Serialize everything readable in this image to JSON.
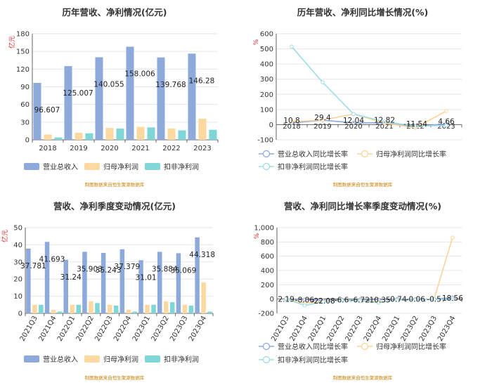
{
  "colors": {
    "revenue": "#8eaadb",
    "net_profit": "#fdd8a0",
    "deducted_profit": "#7fd6d6",
    "revenue_line": "#8eaadb",
    "net_line": "#fcd49a",
    "deducted_line": "#9fdde6",
    "grid": "#e6e6e6",
    "axis": "#666666",
    "text": "#333333",
    "unit_red": "#d62728",
    "source": "#c8820a"
  },
  "chart_data": [
    {
      "type": "bar",
      "title": "历年营收、净利情况(亿元)",
      "unit_label": "亿元",
      "categories": [
        "2018",
        "2019",
        "2020",
        "2021",
        "2022",
        "2023"
      ],
      "yticks": [
        "0",
        "30",
        "60",
        "90",
        "120",
        "150",
        "180"
      ],
      "ylim": [
        0,
        180
      ],
      "series": [
        {
          "name": "营业总收入",
          "values": [
            96.607,
            125.007,
            140.055,
            158.006,
            139.768,
            146.28
          ]
        },
        {
          "name": "归母净利润",
          "values": [
            9,
            12,
            20,
            22,
            19,
            36
          ]
        },
        {
          "name": "扣非净利润",
          "values": [
            4,
            11,
            19,
            21,
            16,
            17
          ]
        }
      ],
      "data_labels": [
        "96.607",
        "125.007",
        "140.055",
        "158.006",
        "139.768",
        "146.28"
      ],
      "source": "制图数据来自恒生聚源数据库"
    },
    {
      "type": "line",
      "title": "历年营收、净利同比增长情况(%)",
      "unit_label": "%",
      "categories": [
        "2018",
        "2019",
        "2020",
        "2021",
        "2022",
        "2023"
      ],
      "yticks": [
        "-100",
        "0",
        "100",
        "200",
        "300",
        "400",
        "500",
        "600"
      ],
      "ylim": [
        -100,
        600
      ],
      "series": [
        {
          "name": "营业总收入同比增长率",
          "values": [
            10.8,
            29.4,
            12.04,
            12.82,
            -11.54,
            4.66
          ]
        },
        {
          "name": "归母净利润同比增长率",
          "values": [
            20,
            30,
            70,
            10,
            -20,
            90
          ]
        },
        {
          "name": "扣非净利润同比增长率",
          "values": [
            515,
            280,
            70,
            20,
            -10,
            -5
          ]
        }
      ],
      "data_labels": [
        "10.8",
        "29.4",
        "12.04",
        "12.82",
        "-11.54",
        "4.66"
      ],
      "source": "制图数据来自恒生聚源数据库"
    },
    {
      "type": "bar",
      "title": "营收、净利季度变动情况(亿元)",
      "unit_label": "亿元",
      "categories": [
        "2021Q3",
        "2021Q4",
        "2022Q1",
        "2022Q2",
        "2022Q3",
        "2022Q4",
        "2023Q1",
        "2023Q2",
        "2023Q3",
        "2023Q4"
      ],
      "yticks": [
        "0",
        "10",
        "20",
        "30",
        "40",
        "50"
      ],
      "ylim": [
        0,
        50
      ],
      "series": [
        {
          "name": "营业总收入",
          "values": [
            37.781,
            41.693,
            31.24,
            35.903,
            35.243,
            37.379,
            31.01,
            35.884,
            35.069,
            44.318
          ]
        },
        {
          "name": "归母净利润",
          "values": [
            5,
            2,
            5,
            7,
            5,
            2,
            5,
            7,
            5,
            18
          ]
        },
        {
          "name": "扣非净利润",
          "values": [
            5,
            1,
            5,
            6,
            4.5,
            1,
            5,
            6.5,
            4.5,
            1
          ]
        }
      ],
      "data_labels": [
        "37.781",
        "41.693",
        "31.24",
        "35.903",
        "35.243",
        "37.379",
        "31.01",
        "35.884",
        "35.069",
        "44.318"
      ],
      "source": "制图数据来自恒生聚源数据库"
    },
    {
      "type": "line",
      "title": "营收、净利同比增长率季度变动情况(%)",
      "unit_label": "%",
      "categories": [
        "2021Q3",
        "2021Q4",
        "2022Q1",
        "2022Q2",
        "2022Q3",
        "2022Q4",
        "2023Q1",
        "2023Q2",
        "2023Q3",
        "2023Q4"
      ],
      "yticks": [
        "-200",
        "0",
        "200",
        "400",
        "600",
        "800",
        "1,000"
      ],
      "ylim": [
        -200,
        1000
      ],
      "series": [
        {
          "name": "营业总收入同比增长率",
          "values": [
            2.19,
            -8.06,
            -22.08,
            -6.6,
            -6.72,
            -10.35,
            -0.74,
            -0.06,
            -0.5,
            18.56
          ]
        },
        {
          "name": "归母净利润同比增长率",
          "values": [
            10,
            -60,
            -30,
            -15,
            -20,
            -40,
            -10,
            -5,
            0,
            860
          ]
        },
        {
          "name": "扣非净利润同比增长率",
          "values": [
            5,
            -90,
            -40,
            -20,
            -30,
            -50,
            -15,
            -10,
            -5,
            -5
          ]
        }
      ],
      "data_labels": [
        "2.19",
        "-8.06",
        "-22.08",
        "-6.6",
        "-6.72",
        "-10.35",
        "-0.74",
        "-0.06",
        "-0.5",
        "18.56"
      ],
      "source": "制图数据来自恒生聚源数据库"
    }
  ]
}
